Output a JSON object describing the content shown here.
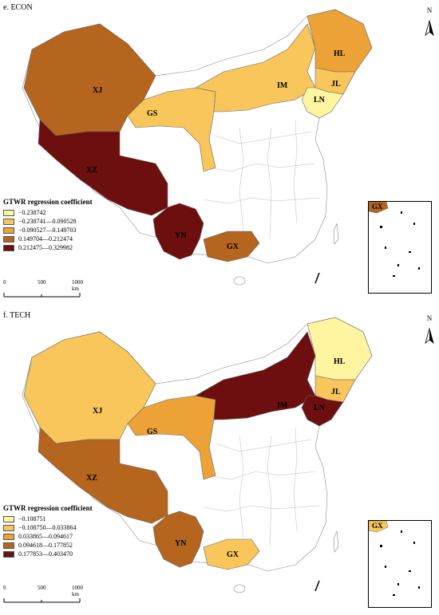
{
  "colors": {
    "class1": "#fff5a0",
    "class2": "#f8c65a",
    "class3": "#eca237",
    "class4": "#b5651d",
    "class5": "#6e0f0f",
    "none": "#ffffff",
    "border": "#888888"
  },
  "panels": [
    {
      "title": "e. ECON",
      "north": "N",
      "legend_title": "GTWR regression coefficient",
      "legend": [
        {
          "label": "−0.238742",
          "cls": "class1"
        },
        {
          "label": "−0.238741—0.090528",
          "cls": "class2"
        },
        {
          "label": "−0.090527—0.149703",
          "cls": "class3"
        },
        {
          "label": "0.149704—0.212474",
          "cls": "class4"
        },
        {
          "label": "0.212475—0.329982",
          "cls": "class5"
        }
      ],
      "scale": [
        "0",
        "500",
        "1000 km"
      ],
      "inset_label": "GX",
      "regions": {
        "XJ": "class4",
        "XZ": "class5",
        "GS": "class2",
        "IM": "class2",
        "HL": "class3",
        "JL": "class2",
        "LN": "class1",
        "YN": "class5",
        "GX": "class4"
      }
    },
    {
      "title": "f. TECH",
      "north": "N",
      "legend_title": "GTWR regression coefficient",
      "legend": [
        {
          "label": "−0.108751",
          "cls": "class1"
        },
        {
          "label": "−0.108750—0.033864",
          "cls": "class2"
        },
        {
          "label": "0.033865—0.094617",
          "cls": "class3"
        },
        {
          "label": "0.094618—0.177852",
          "cls": "class4"
        },
        {
          "label": "0.177853—0.403470",
          "cls": "class5"
        }
      ],
      "scale": [
        "0",
        "500",
        "1000 km"
      ],
      "inset_label": "GX",
      "regions": {
        "XJ": "class2",
        "XZ": "class4",
        "GS": "class3",
        "IM": "class5",
        "HL": "class1",
        "JL": "class2",
        "LN": "class5",
        "YN": "class4",
        "GX": "class2"
      }
    }
  ]
}
